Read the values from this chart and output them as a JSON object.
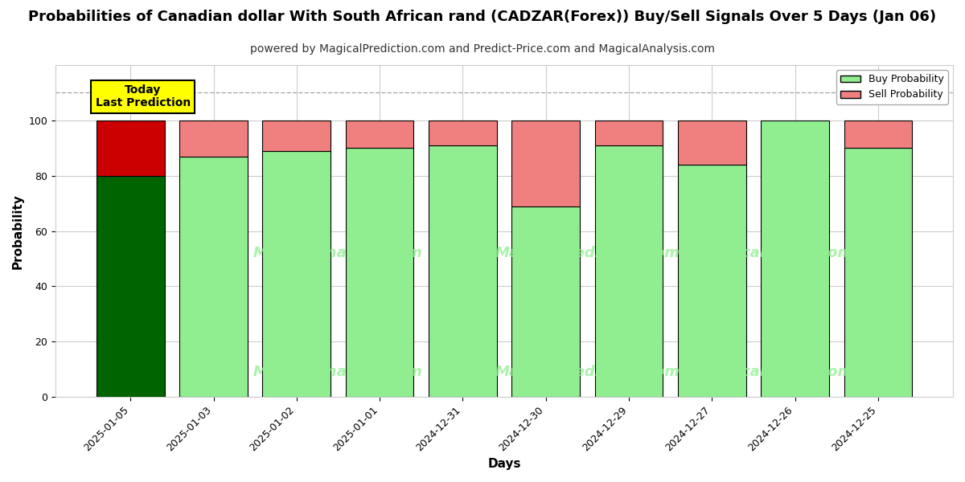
{
  "title": "Probabilities of Canadian dollar With South African rand (CADZAR(Forex)) Buy/Sell Signals Over 5 Days (Jan 06)",
  "subtitle": "powered by MagicalPrediction.com and Predict-Price.com and MagicalAnalysis.com",
  "xlabel": "Days",
  "ylabel": "Probability",
  "dates": [
    "2025-01-05",
    "2025-01-03",
    "2025-01-02",
    "2025-01-01",
    "2024-12-31",
    "2024-12-30",
    "2024-12-29",
    "2024-12-27",
    "2024-12-26",
    "2024-12-25"
  ],
  "buy_probs": [
    80,
    87,
    89,
    90,
    91,
    69,
    91,
    84,
    100,
    90
  ],
  "sell_probs": [
    20,
    13,
    11,
    10,
    9,
    31,
    9,
    16,
    0,
    10
  ],
  "today_bar_buy_color": "#006400",
  "today_bar_sell_color": "#cc0000",
  "other_bar_buy_color": "#90EE90",
  "other_bar_sell_color": "#F08080",
  "bar_edge_color": "#000000",
  "ylim": [
    0,
    120
  ],
  "yticks": [
    0,
    20,
    40,
    60,
    80,
    100
  ],
  "dashed_line_y": 110,
  "dashed_line_color": "#aaaaaa",
  "annotation_text": "Today\nLast Prediction",
  "annotation_bg_color": "#ffff00",
  "annotation_border_color": "#000000",
  "watermark_color_hex": "#90EE90",
  "legend_buy_color": "#90EE90",
  "legend_sell_color": "#F08080",
  "grid_color": "#cccccc",
  "background_color": "#ffffff",
  "title_fontsize": 13,
  "subtitle_fontsize": 10,
  "axis_label_fontsize": 11,
  "tick_fontsize": 9,
  "legend_fontsize": 9,
  "bar_width": 0.82
}
